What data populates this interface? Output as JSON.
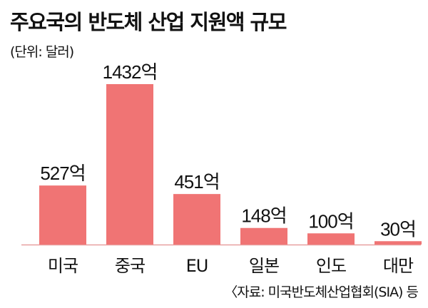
{
  "header": {
    "title": "주요국의 반도체 산업 지원액 규모",
    "unit": "(단위: 달러)"
  },
  "footer": {
    "source": "〈자료: 미국반도체산업협회(SIA) 등"
  },
  "chart_data": {
    "type": "bar",
    "categories": [
      "미국",
      "중국",
      "EU",
      "일본",
      "인도",
      "대만"
    ],
    "values": [
      527,
      1432,
      451,
      148,
      100,
      30
    ],
    "value_labels": [
      "527억",
      "1432억",
      "451억",
      "148억",
      "100억",
      "30억"
    ],
    "ylim": [
      0,
      1432
    ],
    "grid": false,
    "bar_color": "#f07474",
    "baseline_color": "#e8a0a0"
  }
}
